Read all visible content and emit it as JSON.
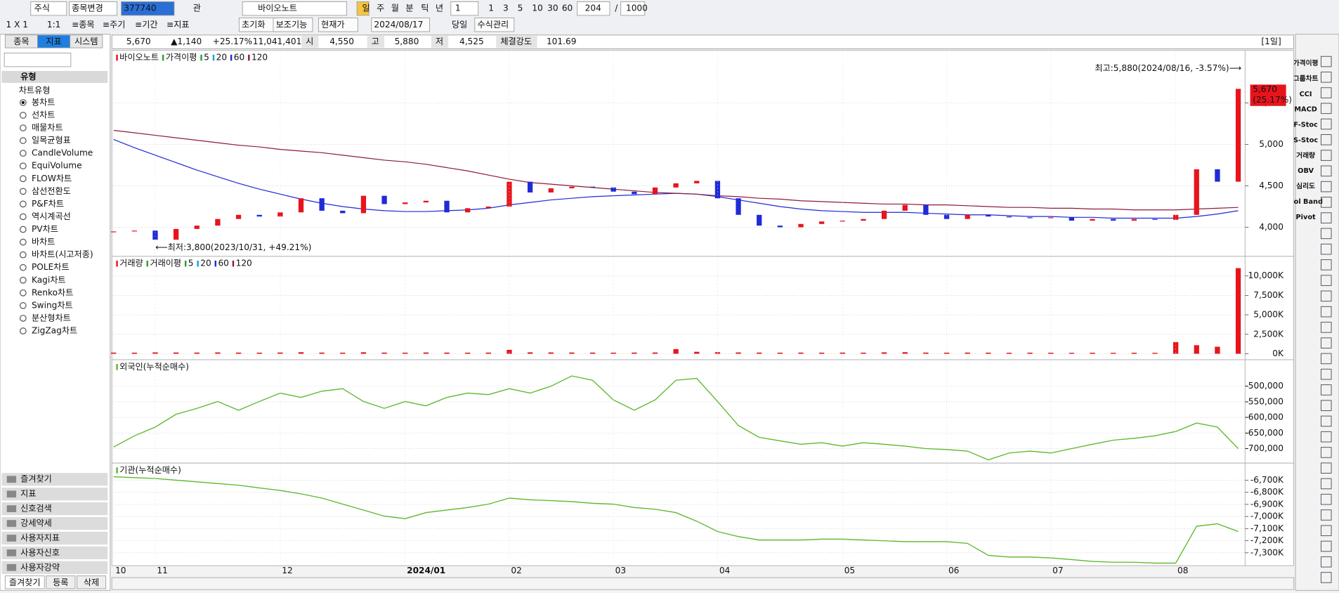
{
  "toolbar": {
    "row1": [
      "주식",
      "종목변경",
      "377740",
      "관",
      "바이오노트",
      "일",
      "주",
      "월",
      "분",
      "틱",
      "년",
      "1",
      "1",
      "3",
      "5",
      "10",
      "30",
      "60",
      "204",
      "/",
      "1000"
    ],
    "row2": [
      "1 X 1",
      "1:1",
      "≡종목",
      "≡주기",
      "≡기간",
      "≡지표",
      "초기화",
      "보조기능",
      "현재가",
      "2024/08/17",
      "당일",
      "수식관리"
    ]
  },
  "sidebar": {
    "tabs": [
      "종목",
      "지표",
      "시스템"
    ],
    "header": "유형",
    "group": "차트유형",
    "items": [
      "봉차트",
      "선차트",
      "매물차트",
      "일목균형표",
      "CandleVolume",
      "EquiVolume",
      "FLOW차트",
      "삼선전환도",
      "P&F차트",
      "역시계곡선",
      "PV차트",
      "바차트",
      "바차트(시고저종)",
      "POLE차트",
      "Kagi차트",
      "Renko차트",
      "Swing차트",
      "분산형차트",
      "ZigZag차트"
    ],
    "folders": [
      "즐겨찾기",
      "지표",
      "신호검색",
      "강세약세",
      "사용자지표",
      "사용자신호",
      "사용자강약"
    ],
    "bottom_tabs": [
      "즐겨찾기",
      "등록",
      "삭제"
    ]
  },
  "info_bar": {
    "items": [
      "5,670",
      "▲1,140",
      "+25.17%",
      "11,041,401",
      "시",
      "4,550",
      "고",
      "5,880",
      "저",
      "4,525",
      "체결강도",
      "101.69"
    ],
    "period": "[1일]"
  },
  "right_toolbar": [
    "가격이평",
    "그룹차트",
    "CCI",
    "MACD",
    "F-Stoc",
    "S-Stoc",
    "거래량",
    "OBV",
    "심리도",
    "Bol Band",
    "Pivot"
  ],
  "chart_data": [
    {
      "type": "candlestick",
      "legend": [
        {
          "text": "바이오노트",
          "color": "#e8141c"
        },
        {
          "text": "가격이평",
          "color": "#2ca02c"
        },
        {
          "text": "5",
          "color": "#2ca02c"
        },
        {
          "text": "20",
          "color": "#1aa0e0"
        },
        {
          "text": "60",
          "color": "#1f2ad8"
        },
        {
          "text": "120",
          "color": "#8b1a3a"
        }
      ],
      "high_note": "최고:5,880(2024/08/16, -3.57%)⟶",
      "low_note": "⟵최저:3,800(2023/10/31, +49.21%)",
      "last_price": "5,670",
      "last_change": "(25.17%)",
      "up_color": "#e8141c",
      "down_color": "#1f2ad8",
      "values": [
        3950,
        3960,
        3850,
        3980,
        4020,
        4100,
        4150,
        4130,
        4180,
        4350,
        4200,
        4170,
        4380,
        4280,
        4300,
        4320,
        4180,
        4230,
        4250,
        4550,
        4420,
        4470,
        4490,
        4480,
        4430,
        4400,
        4480,
        4530,
        4560,
        4350,
        4150,
        4020,
        4000,
        4040,
        4070,
        4080,
        4100,
        4200,
        4270,
        4150,
        4100,
        4150,
        4130,
        4120,
        4110,
        4120,
        4080,
        4100,
        4080,
        4100,
        4090,
        4150,
        4700,
        4550,
        5670
      ],
      "series": [
        {
          "name": "60",
          "color": "#1f2ad8",
          "values": [
            5060,
            4960,
            4870,
            4780,
            4690,
            4610,
            4530,
            4460,
            4400,
            4340,
            4290,
            4250,
            4220,
            4200,
            4190,
            4190,
            4200,
            4210,
            4230,
            4270,
            4300,
            4330,
            4350,
            4370,
            4380,
            4390,
            4400,
            4410,
            4400,
            4370,
            4330,
            4290,
            4250,
            4220,
            4200,
            4190,
            4180,
            4180,
            4180,
            4170,
            4160,
            4150,
            4150,
            4140,
            4130,
            4130,
            4120,
            4120,
            4110,
            4110,
            4110,
            4110,
            4130,
            4160,
            4200
          ]
        },
        {
          "name": "120",
          "color": "#8b1a3a",
          "values": [
            5170,
            5140,
            5110,
            5080,
            5050,
            5020,
            4990,
            4970,
            4940,
            4920,
            4900,
            4870,
            4840,
            4810,
            4790,
            4760,
            4720,
            4680,
            4630,
            4580,
            4540,
            4520,
            4500,
            4480,
            4460,
            4440,
            4420,
            4410,
            4400,
            4380,
            4370,
            4350,
            4340,
            4320,
            4310,
            4300,
            4290,
            4280,
            4280,
            4270,
            4270,
            4260,
            4250,
            4240,
            4240,
            4230,
            4230,
            4220,
            4220,
            4210,
            4210,
            4210,
            4220,
            4230,
            4240
          ]
        }
      ],
      "ylim": [
        3670,
        6000
      ],
      "yticks": [
        {
          "value": 4000,
          "label": "4,000"
        },
        {
          "value": 4500,
          "label": "4,500"
        },
        {
          "value": 5000,
          "label": "5,000"
        },
        {
          "value": 5500,
          "label": "5,500"
        }
      ],
      "grid": true
    },
    {
      "type": "bar",
      "legend": [
        {
          "text": "거래량",
          "color": "#e8141c"
        },
        {
          "text": "거래이평",
          "color": "#2ca02c"
        },
        {
          "text": "5",
          "color": "#2ca02c"
        },
        {
          "text": "20",
          "color": "#1aa0e0"
        },
        {
          "text": "60",
          "color": "#1f2ad8"
        },
        {
          "text": "120",
          "color": "#8b1a3a"
        }
      ],
      "color": "#e8141c",
      "values": [
        150,
        140,
        180,
        160,
        150,
        170,
        150,
        140,
        160,
        200,
        150,
        140,
        190,
        150,
        140,
        160,
        150,
        140,
        150,
        500,
        180,
        170,
        160,
        150,
        140,
        150,
        160,
        600,
        250,
        200,
        170,
        150,
        140,
        150,
        140,
        150,
        140,
        180,
        200,
        150,
        140,
        150,
        140,
        130,
        140,
        130,
        120,
        130,
        120,
        130,
        120,
        1500,
        1100,
        900,
        11000
      ],
      "ylim": [
        -440,
        11200
      ],
      "yticks": [
        {
          "value": 0,
          "label": "0K"
        },
        {
          "value": 2500,
          "label": "2,500K"
        },
        {
          "value": 5000,
          "label": "5,000K"
        },
        {
          "value": 7500,
          "label": "7,500K"
        },
        {
          "value": 10000,
          "label": "10,000K"
        }
      ],
      "grid": true
    },
    {
      "type": "line",
      "title": "외국인(누적순매수)",
      "color": "#5cb82a",
      "values": [
        -695000,
        -659000,
        -631000,
        -590000,
        -571000,
        -549000,
        -577000,
        -549000,
        -522000,
        -536000,
        -516000,
        -508000,
        -549000,
        -571000,
        -549000,
        -563000,
        -536000,
        -522000,
        -527000,
        -508000,
        -522000,
        -500000,
        -467000,
        -481000,
        -544000,
        -577000,
        -544000,
        -481000,
        -475000,
        -549000,
        -626000,
        -664000,
        -675000,
        -686000,
        -681000,
        -692000,
        -681000,
        -686000,
        -692000,
        -700000,
        -703000,
        -708000,
        -736000,
        -714000,
        -708000,
        -714000,
        -700000,
        -686000,
        -673000,
        -667000,
        -659000,
        -645000,
        -618000,
        -631000,
        -700000
      ],
      "ylim": [
        -741000,
        -448000
      ],
      "yticks": [
        {
          "value": -700000,
          "label": "-700,000"
        },
        {
          "value": -650000,
          "label": "-650,000"
        },
        {
          "value": -600000,
          "label": "-600,000"
        },
        {
          "value": -550000,
          "label": "-550,000"
        },
        {
          "value": -500000,
          "label": "-500,000"
        }
      ],
      "grid": true
    },
    {
      "type": "line",
      "title": "기관(누적순매수)",
      "color": "#5cb82a",
      "values": [
        -6672,
        -6679,
        -6686,
        -6700,
        -6714,
        -6728,
        -6742,
        -6764,
        -6785,
        -6813,
        -6848,
        -6898,
        -6947,
        -6997,
        -7018,
        -6968,
        -6947,
        -6926,
        -6898,
        -6848,
        -6862,
        -6869,
        -6877,
        -6891,
        -6898,
        -6926,
        -6940,
        -6968,
        -7039,
        -7124,
        -7166,
        -7194,
        -7194,
        -7194,
        -7187,
        -7187,
        -7194,
        -7201,
        -7208,
        -7208,
        -7208,
        -7222,
        -7321,
        -7335,
        -7335,
        -7342,
        -7356,
        -7371,
        -7378,
        -7378,
        -7385,
        -7385,
        -7081,
        -7060,
        -7124
      ],
      "categories": [
        "10",
        null,
        "11",
        null,
        null,
        null,
        null,
        null,
        "12",
        null,
        null,
        null,
        null,
        null,
        "2024/01",
        null,
        null,
        null,
        null,
        "02",
        null,
        null,
        null,
        null,
        "03",
        null,
        null,
        null,
        null,
        "04",
        null,
        null,
        null,
        null,
        null,
        "05",
        null,
        null,
        null,
        null,
        "06",
        null,
        null,
        null,
        null,
        "07",
        null,
        null,
        null,
        null,
        null,
        "08",
        null,
        null,
        null
      ],
      "ylim": [
        -7392,
        -6651
      ],
      "yticks": [
        {
          "value": -7300,
          "label": "-7,300K"
        },
        {
          "value": -7200,
          "label": "-7,200K"
        },
        {
          "value": -7100,
          "label": "-7,100K"
        },
        {
          "value": -7000,
          "label": "-7,000K"
        },
        {
          "value": -6900,
          "label": "-6,900K"
        },
        {
          "value": -6800,
          "label": "-6,800K"
        },
        {
          "value": -6700,
          "label": "-6,700K"
        }
      ],
      "grid": true
    }
  ]
}
